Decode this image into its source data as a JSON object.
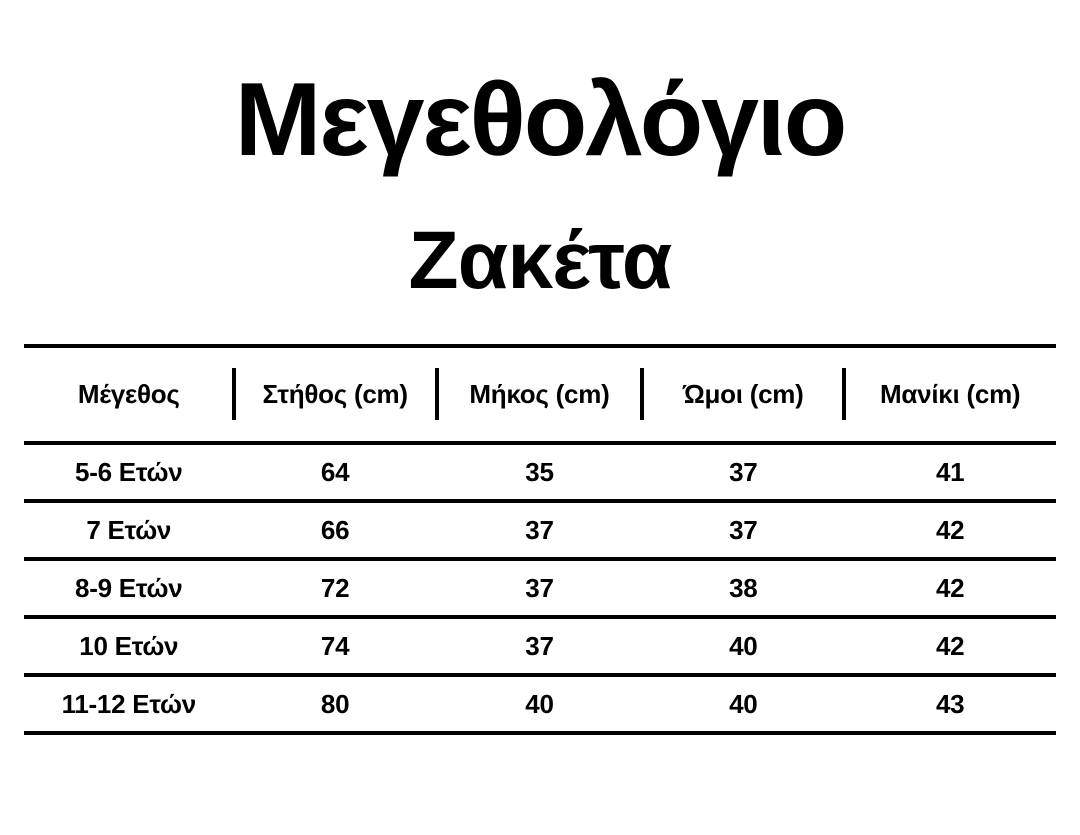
{
  "header": {
    "title": "Μεγεθολόγιο",
    "subtitle": "Ζακέτα"
  },
  "table": {
    "columns": [
      "Μέγεθος",
      "Στήθος (cm)",
      "Μήκος (cm)",
      "Ώμοι (cm)",
      "Μανίκι (cm)"
    ],
    "rows": [
      {
        "size": "5-6 Ετών",
        "chest": "64",
        "length": "35",
        "shoulders": "37",
        "sleeve": "41"
      },
      {
        "size": "7 Ετών",
        "chest": "66",
        "length": "37",
        "shoulders": "37",
        "sleeve": "42"
      },
      {
        "size": "8-9 Ετών",
        "chest": "72",
        "length": "37",
        "shoulders": "38",
        "sleeve": "42"
      },
      {
        "size": "10 Ετών",
        "chest": "74",
        "length": "37",
        "shoulders": "40",
        "sleeve": "42"
      },
      {
        "size": "11-12 Ετών",
        "chest": "80",
        "length": "40",
        "shoulders": "40",
        "sleeve": "43"
      }
    ]
  },
  "colors": {
    "background": "#ffffff",
    "text": "#000000",
    "rule": "#000000"
  }
}
